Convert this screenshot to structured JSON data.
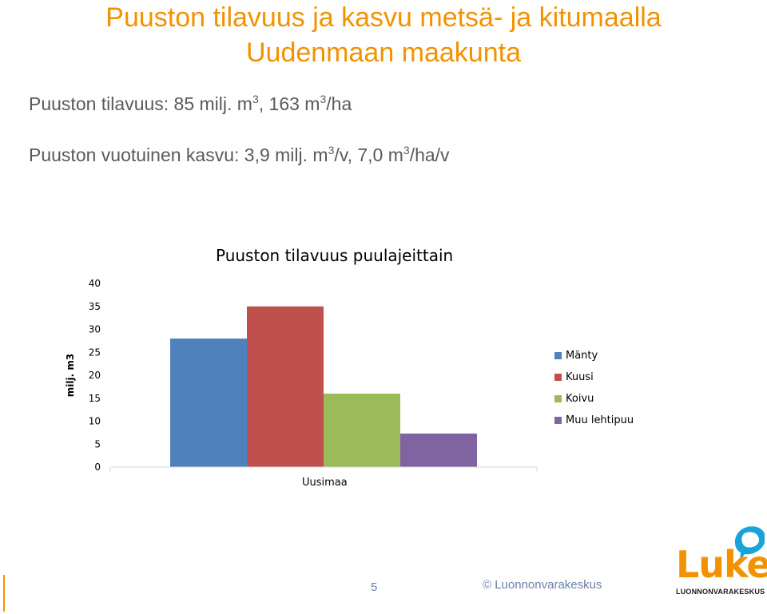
{
  "header": {
    "title_line1": "Puuston tilavuus ja kasvu metsä- ja kitumaalla",
    "title_line2": "Uudenmaan maakunta"
  },
  "bullets": {
    "volume": {
      "a": "Puuston tilavuus: 85 milj. m",
      "sup1": "3",
      "b": ", 163 m",
      "sup2": "3",
      "c": "/ha"
    },
    "growth": {
      "a": "Puuston vuotuinen kasvu: 3,9 milj. m",
      "sup1": "3",
      "b": "/v, 7,0 m",
      "sup2": "3",
      "c": "/ha/v"
    }
  },
  "chart_data": {
    "type": "bar",
    "title": "Puuston tilavuus puulajeittain",
    "xlabel": "",
    "ylabel": "milj. m3",
    "categories": [
      "Uusimaa"
    ],
    "series": [
      {
        "name": "Mänty",
        "values": [
          28
        ],
        "color": "#4F81BD"
      },
      {
        "name": "Kuusi",
        "values": [
          35
        ],
        "color": "#C0504D"
      },
      {
        "name": "Koivu",
        "values": [
          16
        ],
        "color": "#9BBB59"
      },
      {
        "name": "Muu lehtipuu",
        "values": [
          7.3
        ],
        "color": "#8064A2"
      }
    ],
    "ylim": [
      0,
      40
    ],
    "yticks": [
      "0",
      "5",
      "10",
      "15",
      "20",
      "25",
      "30",
      "35",
      "40"
    ],
    "grid": false,
    "legend": "right"
  },
  "footer": {
    "page_number": "5",
    "copyright": "© Luonnonvarakeskus"
  },
  "logo": {
    "word": "Luke",
    "subtitle": "LUONNONVARAKESKUS",
    "accent_color": "#F39200",
    "bubble_color": "#1aa3d9"
  }
}
